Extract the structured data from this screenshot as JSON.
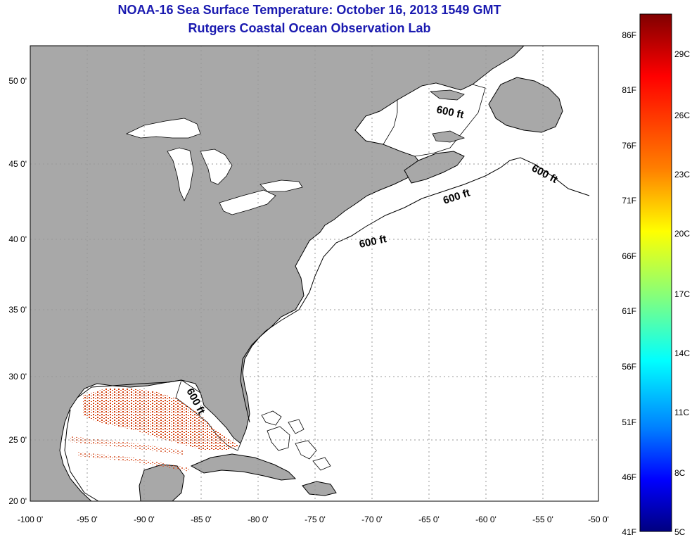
{
  "header": {
    "title": "NOAA-16 Sea Surface Temperature:  October 16, 2013 1549 GMT",
    "subtitle": "Rutgers Coastal Ocean Observation Lab"
  },
  "map": {
    "lat_ticks": [
      "50 0'",
      "45 0'",
      "40 0'",
      "35 0'",
      "30 0'",
      "25 0'",
      "20 0'"
    ],
    "lon_ticks": [
      "-100 0'",
      "-95 0'",
      "-90 0'",
      "-85 0'",
      "-80 0'",
      "-75 0'",
      "-70 0'",
      "-65 0'",
      "-60 0'",
      "-55 0'",
      "-50 0'"
    ],
    "lat_range": [
      20,
      52.5
    ],
    "lon_range": [
      -100,
      -50
    ],
    "contour_label": "600 ft",
    "land_color": "#a8a8a8",
    "ocean_color": "#ffffff"
  },
  "colorbar": {
    "f_labels": [
      "86F",
      "81F",
      "76F",
      "71F",
      "66F",
      "61F",
      "56F",
      "51F",
      "46F",
      "41F"
    ],
    "c_labels": [
      "29C",
      "26C",
      "23C",
      "20C",
      "17C",
      "14C",
      "11C",
      "8C",
      "5C"
    ],
    "stops": [
      "#800000",
      "#ff0000",
      "#ff8000",
      "#ffff00",
      "#80ff80",
      "#00ffff",
      "#0080ff",
      "#0000ff",
      "#000080"
    ]
  }
}
